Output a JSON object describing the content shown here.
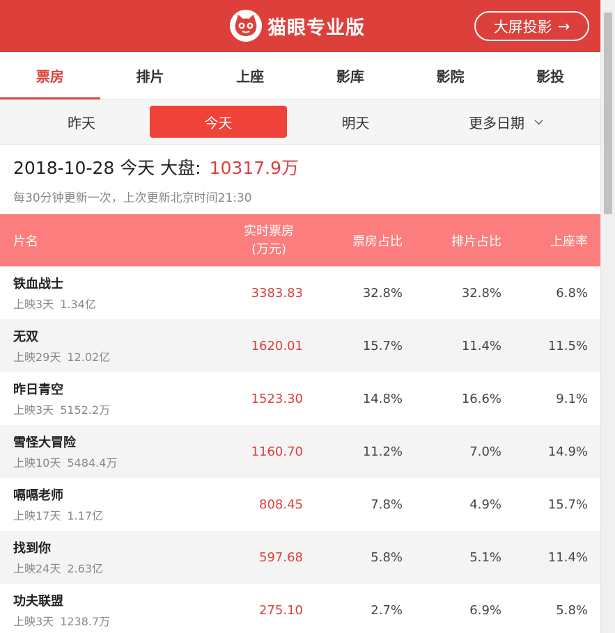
{
  "header": {
    "brand_title": "猫眼专业版",
    "screen_button_label": "大屏投影",
    "screen_button_arrow": "→"
  },
  "tabs": [
    {
      "label": "票房",
      "active": true
    },
    {
      "label": "排片"
    },
    {
      "label": "上座"
    },
    {
      "label": "影库"
    },
    {
      "label": "影院"
    },
    {
      "label": "影投"
    }
  ],
  "dates": {
    "yesterday": "昨天",
    "today": "今天",
    "tomorrow": "明天",
    "more": "更多日期"
  },
  "summary": {
    "date_label": "2018-10-28 今天 大盘:",
    "total": "10317.9万",
    "update_note": "每30分钟更新一次，上次更新北京时间21:30"
  },
  "table": {
    "headers": {
      "name": "片名",
      "box_line1": "实时票房",
      "box_line2": "(万元)",
      "box_share": "票房占比",
      "show_share": "排片占比",
      "seat_rate": "上座率"
    },
    "rows": [
      {
        "name": "铁血战士",
        "days": "上映3天",
        "total": "1.34亿",
        "box": "3383.83",
        "box_share": "32.8%",
        "show_share": "32.8%",
        "seat_rate": "6.8%"
      },
      {
        "name": "无双",
        "days": "上映29天",
        "total": "12.02亿",
        "box": "1620.01",
        "box_share": "15.7%",
        "show_share": "11.4%",
        "seat_rate": "11.5%"
      },
      {
        "name": "昨日青空",
        "days": "上映3天",
        "total": "5152.2万",
        "box": "1523.30",
        "box_share": "14.8%",
        "show_share": "16.6%",
        "seat_rate": "9.1%"
      },
      {
        "name": "雪怪大冒险",
        "days": "上映10天",
        "total": "5484.4万",
        "box": "1160.70",
        "box_share": "11.2%",
        "show_share": "7.0%",
        "seat_rate": "14.9%"
      },
      {
        "name": "嗝嗝老师",
        "days": "上映17天",
        "total": "1.17亿",
        "box": "808.45",
        "box_share": "7.8%",
        "show_share": "4.9%",
        "seat_rate": "15.7%"
      },
      {
        "name": "找到你",
        "days": "上映24天",
        "total": "2.63亿",
        "box": "597.68",
        "box_share": "5.8%",
        "show_share": "5.1%",
        "seat_rate": "11.4%"
      },
      {
        "name": "功夫联盟",
        "days": "上映3天",
        "total": "1238.7万",
        "box": "275.10",
        "box_share": "2.7%",
        "show_share": "6.9%",
        "seat_rate": "5.8%"
      }
    ]
  },
  "colors": {
    "brand_red": "#dd403b",
    "active_date": "#ef4238",
    "table_header": "#fb7d7d",
    "alt_row": "#f4f4f4"
  },
  "icons": [
    "cat-logo-icon",
    "arrow-right-icon",
    "chevron-down-icon"
  ]
}
